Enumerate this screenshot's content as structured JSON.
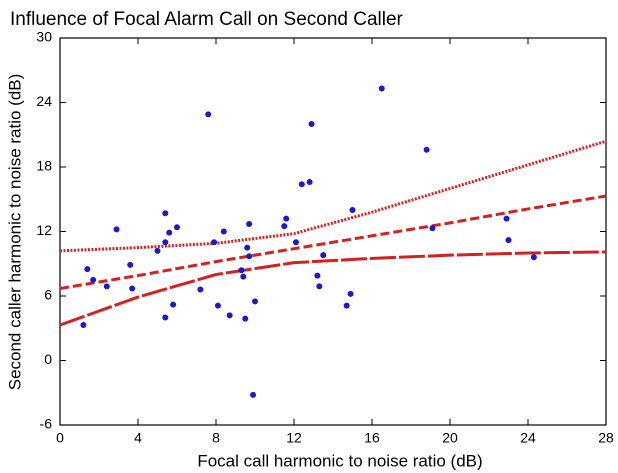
{
  "chart_data": {
    "type": "scatter",
    "title": "Influence of Focal Alarm Call on Second Caller",
    "x_label": "Focal call harmonic to noise ratio (dB)",
    "y_label": "Second caller harmonic to noise ratio (dB)",
    "xlim": [
      0,
      28
    ],
    "xticks": [
      0,
      4,
      8,
      12,
      16,
      20,
      24,
      28
    ],
    "ylim": [
      -6,
      30
    ],
    "yticks": [
      -6,
      0,
      6,
      12,
      18,
      24,
      30
    ],
    "grid": false,
    "points": {
      "color": "#1a1acc",
      "x": [
        1.2,
        1.4,
        1.7,
        2.4,
        2.9,
        3.6,
        3.7,
        5.0,
        5.4,
        5.4,
        5.4,
        5.6,
        5.8,
        6.0,
        7.2,
        7.6,
        7.9,
        8.1,
        8.4,
        8.7,
        9.3,
        9.4,
        9.5,
        9.6,
        9.7,
        9.7,
        9.9,
        10.0,
        11.5,
        11.6,
        12.1,
        12.4,
        12.8,
        12.9,
        13.2,
        13.3,
        13.5,
        14.7,
        14.9,
        15.0,
        16.5,
        18.8,
        19.1,
        22.9,
        23.0,
        24.3
      ],
      "y": [
        3.3,
        8.5,
        7.5,
        6.9,
        12.2,
        8.9,
        6.7,
        10.2,
        11.0,
        13.7,
        4.0,
        11.9,
        5.2,
        12.4,
        6.6,
        22.9,
        11.0,
        5.1,
        12.0,
        4.2,
        8.4,
        7.8,
        3.9,
        10.5,
        12.7,
        9.7,
        -3.2,
        5.5,
        12.5,
        13.2,
        11.0,
        16.4,
        16.6,
        22.0,
        7.9,
        6.9,
        9.8,
        5.1,
        6.2,
        14.0,
        25.3,
        19.6,
        12.3,
        13.2,
        11.2,
        9.6
      ]
    },
    "lines": {
      "color": "#d42020",
      "x": [
        0,
        4,
        8,
        12,
        16,
        20,
        24,
        28
      ],
      "series": [
        {
          "style": "dotted",
          "values": [
            10.2,
            10.5,
            10.9,
            11.8,
            13.8,
            16.0,
            18.2,
            20.4
          ]
        },
        {
          "style": "dashed",
          "values": [
            6.7,
            7.9,
            9.2,
            10.4,
            11.6,
            12.8,
            14.1,
            15.3
          ]
        },
        {
          "style": "long-dash",
          "values": [
            3.3,
            5.9,
            8.0,
            9.1,
            9.5,
            9.8,
            10.0,
            10.1
          ]
        }
      ]
    }
  }
}
